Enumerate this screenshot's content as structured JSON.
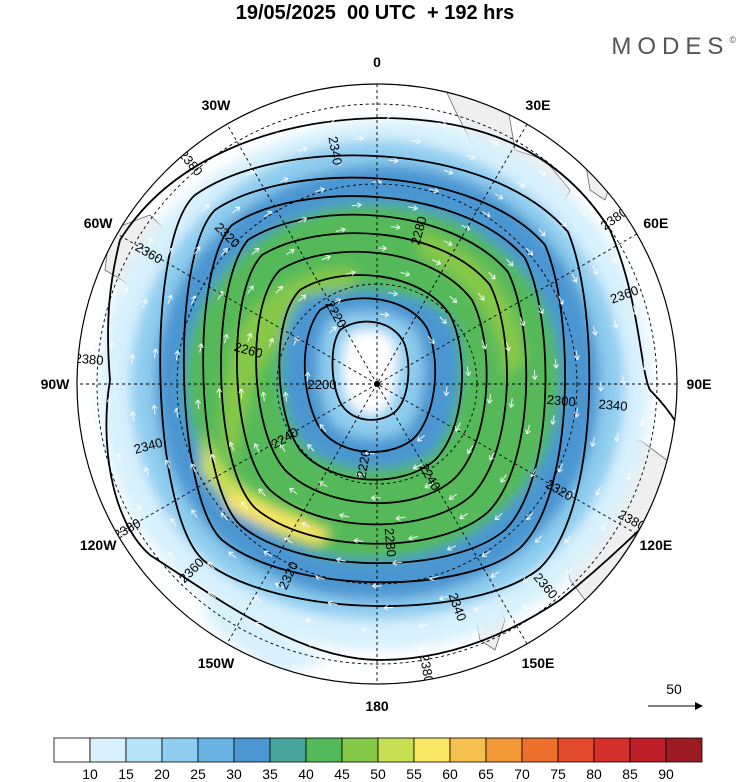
{
  "title": "19/05/2025  00 UTC  + 192 hrs",
  "brand": "MODES",
  "brand_mark": "©",
  "meridian_labels": [
    {
      "text": "0",
      "angle": 0
    },
    {
      "text": "30E",
      "angle": 30
    },
    {
      "text": "60E",
      "angle": 60
    },
    {
      "text": "90E",
      "angle": 90
    },
    {
      "text": "120E",
      "angle": 120
    },
    {
      "text": "150E",
      "angle": 150
    },
    {
      "text": "180",
      "angle": 180
    },
    {
      "text": "150W",
      "angle": 210
    },
    {
      "text": "120W",
      "angle": 240
    },
    {
      "text": "90W",
      "angle": 270
    },
    {
      "text": "60W",
      "angle": 300
    },
    {
      "text": "30W",
      "angle": 330
    }
  ],
  "contours": [
    {
      "value": "2200",
      "labels": [
        {
          "text": "2200",
          "angle": 270
        }
      ]
    },
    {
      "value": "2220",
      "labels": [
        {
          "text": "2220",
          "angle": 330
        },
        {
          "text": "2220",
          "angle": 190
        }
      ]
    },
    {
      "value": "2240",
      "labels": [
        {
          "text": "2240",
          "angle": 150
        },
        {
          "text": "2240",
          "angle": 240
        }
      ]
    },
    {
      "value": "2260",
      "labels": [
        {
          "text": "2260",
          "angle": 285
        }
      ]
    },
    {
      "value": "2280",
      "labels": [
        {
          "text": "2280",
          "angle": 15
        },
        {
          "text": "2280",
          "angle": 175
        }
      ]
    },
    {
      "value": "2300",
      "labels": [
        {
          "text": "2300",
          "angle": 95
        }
      ]
    },
    {
      "value": "2320",
      "labels": [
        {
          "text": "2320",
          "angle": 315
        },
        {
          "text": "2320",
          "angle": 120
        },
        {
          "text": "2320",
          "angle": 205
        }
      ]
    },
    {
      "value": "2340",
      "labels": [
        {
          "text": "2340",
          "angle": 350
        },
        {
          "text": "2340",
          "angle": 95
        },
        {
          "text": "2340",
          "angle": 255
        },
        {
          "text": "2340",
          "angle": 160
        }
      ]
    },
    {
      "value": "2360",
      "labels": [
        {
          "text": "2360",
          "angle": 300
        },
        {
          "text": "2360",
          "angle": 70
        },
        {
          "text": "2360",
          "angle": 140
        },
        {
          "text": "2360",
          "angle": 225
        }
      ]
    },
    {
      "value": "2380",
      "labels": [
        {
          "text": "2380",
          "angle": 320
        },
        {
          "text": "2380",
          "angle": 55
        },
        {
          "text": "2380",
          "angle": 275
        },
        {
          "text": "2380",
          "angle": 118
        },
        {
          "text": "2380",
          "angle": 240
        },
        {
          "text": "2380",
          "angle": 170
        }
      ]
    }
  ],
  "reference_vector": {
    "value": "50"
  },
  "colorbar": {
    "colors": [
      "#ffffff",
      "#d8f1fc",
      "#b6e3f7",
      "#8ecdef",
      "#69b3e3",
      "#4c96d1",
      "#48a59b",
      "#54b95a",
      "#86c848",
      "#c7df52",
      "#fae665",
      "#f6c04e",
      "#f29a38",
      "#ed6f2c",
      "#e34a2d",
      "#d6302c",
      "#bf1e2b",
      "#9c1b23"
    ],
    "ticks": [
      "10",
      "15",
      "20",
      "25",
      "30",
      "35",
      "40",
      "45",
      "50",
      "55",
      "60",
      "65",
      "70",
      "75",
      "80",
      "85",
      "90"
    ]
  }
}
